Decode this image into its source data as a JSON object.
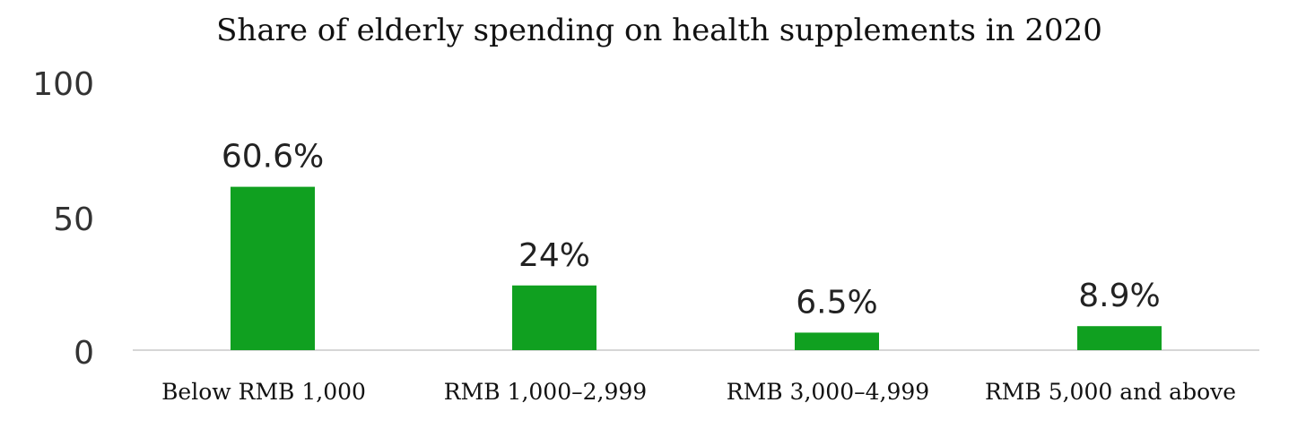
{
  "chart_data": {
    "type": "bar",
    "title": "Share of elderly spending on health supplements in 2020",
    "categories": [
      "Below RMB 1,000",
      "RMB 1,000–2,999",
      "RMB 3,000–4,999",
      "RMB 5,000 and above"
    ],
    "values": [
      60.6,
      24,
      6.5,
      8.9
    ],
    "value_labels": [
      "60.6%",
      "24%",
      "6.5%",
      "8.9%"
    ],
    "yticks": [
      "0",
      "50",
      "100"
    ],
    "ylim": [
      0,
      100
    ],
    "xlabel": "",
    "ylabel": "",
    "grid": false,
    "bar_color": "#10a020"
  }
}
